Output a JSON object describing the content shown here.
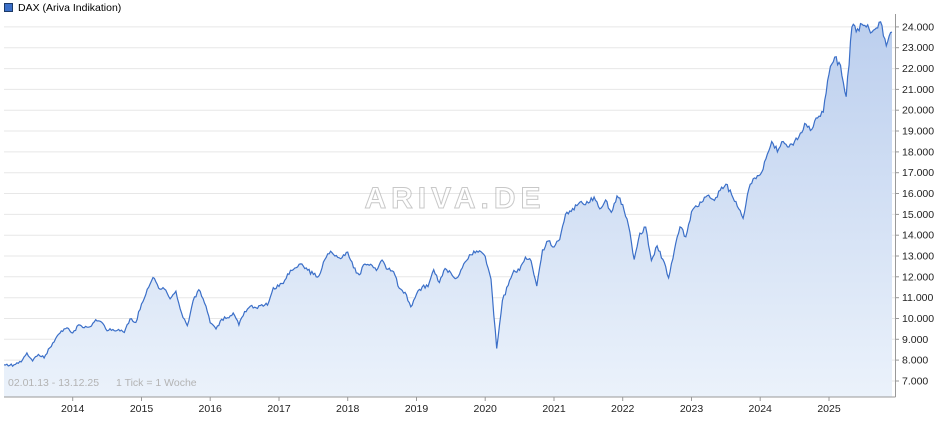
{
  "header": {
    "legend_label": "DAX (Ariva Indikation)"
  },
  "watermark": "ARIVA.DE",
  "colors": {
    "line": "#3b6fc8",
    "fill_top": "#bccfee",
    "fill_bottom": "#ebf2fb",
    "grid": "#e7e7e7",
    "axis": "#999999",
    "text": "#222222",
    "muted": "#b3b3b3"
  },
  "chart_data": {
    "type": "area",
    "title": "DAX (Ariva Indikation)",
    "period_label": "02.01.13 - 13.12.25",
    "tick_label": "1 Tick = 1 Woche",
    "x_start_year": 2013,
    "x_end_year_fraction": 2025.96,
    "sampling_note": "monthly estimates of the weekly chart, Jan 2013 - Dec 2025",
    "x_year_ticks": [
      2014,
      2015,
      2016,
      2017,
      2018,
      2019,
      2020,
      2021,
      2022,
      2023,
      2024,
      2025
    ],
    "x_year_labels": [
      "2014",
      "2015",
      "2016",
      "2017",
      "2018",
      "2019",
      "2020",
      "2021",
      "2022",
      "2023",
      "2024",
      "2025"
    ],
    "y_tick_values": [
      7000,
      8000,
      9000,
      10000,
      11000,
      12000,
      13000,
      14000,
      15000,
      16000,
      17000,
      18000,
      19000,
      20000,
      21000,
      22000,
      23000,
      24000
    ],
    "y_tick_labels": [
      "7.000",
      "8.000",
      "9.000",
      "10.000",
      "11.000",
      "12.000",
      "13.000",
      "14.000",
      "15.000",
      "16.000",
      "17.000",
      "18.000",
      "19.000",
      "20.000",
      "21.000",
      "22.000",
      "23.000",
      "24.000"
    ],
    "ylim": [
      6230,
      24620
    ],
    "grid": "horizontal",
    "legend_position": "top-left",
    "series": [
      {
        "name": "DAX",
        "values": [
          7778,
          7741,
          7795,
          7914,
          8349,
          7959,
          8276,
          8103,
          8594,
          9034,
          9405,
          9552,
          9306,
          9692,
          9556,
          9603,
          9943,
          9833,
          9407,
          9470,
          9474,
          9327,
          9981,
          9806,
          10694,
          11402,
          11966,
          11454,
          11414,
          10945,
          11309,
          10259,
          9660,
          10850,
          11382,
          10743,
          9798,
          9495,
          9966,
          10039,
          10263,
          9680,
          10337,
          10593,
          10511,
          10665,
          10640,
          11481,
          11535,
          11834,
          12313,
          12438,
          12615,
          12325,
          12118,
          12056,
          12829,
          13230,
          13024,
          12918,
          13189,
          12436,
          12097,
          12612,
          12604,
          12306,
          12806,
          12364,
          12247,
          11447,
          11257,
          10559,
          11173,
          11516,
          11526,
          12344,
          11727,
          12399,
          12189,
          11939,
          12428,
          12867,
          13236,
          13249,
          12982,
          11890,
          8560,
          10862,
          11587,
          12311,
          12313,
          12945,
          12761,
          11556,
          13291,
          13719,
          13433,
          13786,
          15008,
          15136,
          15421,
          15531,
          15544,
          15835,
          15261,
          15689,
          15100,
          15885,
          15471,
          14461,
          12831,
          14098,
          14388,
          12784,
          13484,
          12835,
          11950,
          13254,
          14397,
          13924,
          15128,
          15365,
          15629,
          15922,
          15664,
          16148,
          16447,
          15947,
          15387,
          14810,
          16215,
          16752,
          16904,
          17678,
          18492,
          18001,
          18498,
          18235,
          18509,
          18907,
          19325,
          19078,
          19626,
          19909,
          21732,
          22551,
          22163,
          20650,
          23997,
          23910,
          24066,
          23902,
          23881,
          24241,
          23091,
          23750
        ]
      }
    ]
  }
}
